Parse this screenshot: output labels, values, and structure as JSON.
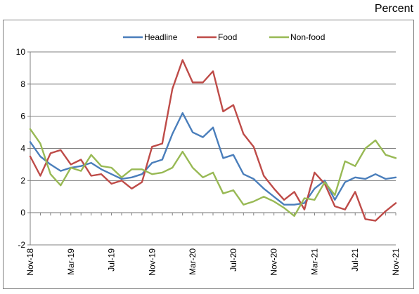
{
  "unit_label": "Percent",
  "chart_data": {
    "type": "line",
    "title": "",
    "xlabel": "",
    "ylabel": "",
    "ylim": [
      -2,
      10
    ],
    "yticks": [
      -2,
      0,
      2,
      4,
      6,
      8,
      10
    ],
    "grid": "horizontal",
    "legend": "top-center",
    "categories": [
      "Nov-18",
      "Dec-18",
      "Jan-19",
      "Feb-19",
      "Mar-19",
      "Apr-19",
      "May-19",
      "Jun-19",
      "Jul-19",
      "Aug-19",
      "Sep-19",
      "Oct-19",
      "Nov-19",
      "Dec-19",
      "Jan-20",
      "Feb-20",
      "Mar-20",
      "Apr-20",
      "May-20",
      "Jun-20",
      "Jul-20",
      "Aug-20",
      "Sep-20",
      "Oct-20",
      "Nov-20",
      "Dec-20",
      "Jan-21",
      "Feb-21",
      "Mar-21",
      "Apr-21",
      "May-21",
      "Jun-21",
      "Jul-21",
      "Aug-21",
      "Sep-21",
      "Oct-21",
      "Nov-21"
    ],
    "xtick_labels": [
      "Nov-18",
      "Mar-19",
      "Jul-19",
      "Nov-19",
      "Mar-20",
      "Jul-20",
      "Nov-20",
      "Mar-21",
      "Jul-21",
      "Nov-21"
    ],
    "series": [
      {
        "name": "Headline",
        "color": "#4a7ebb",
        "values": [
          4.4,
          3.5,
          3.0,
          2.6,
          2.8,
          2.9,
          3.1,
          2.7,
          2.4,
          2.1,
          2.2,
          2.4,
          3.1,
          3.3,
          4.9,
          6.2,
          5.0,
          4.7,
          5.3,
          3.4,
          3.6,
          2.4,
          2.1,
          1.5,
          1.0,
          0.5,
          0.5,
          0.6,
          1.5,
          2.0,
          0.8,
          1.9,
          2.2,
          2.1,
          2.4,
          2.1,
          2.2
        ]
      },
      {
        "name": "Food",
        "color": "#be4b48",
        "values": [
          3.5,
          2.3,
          3.7,
          3.9,
          3.0,
          3.3,
          2.3,
          2.4,
          1.8,
          2.0,
          1.5,
          1.9,
          4.1,
          4.3,
          7.7,
          9.5,
          8.1,
          8.1,
          8.8,
          6.3,
          6.7,
          4.9,
          4.1,
          2.3,
          1.5,
          0.8,
          1.3,
          0.2,
          2.5,
          1.8,
          0.4,
          0.2,
          1.3,
          -0.4,
          -0.5,
          0.1,
          0.6
        ]
      },
      {
        "name": "Non-food",
        "color": "#98b954",
        "values": [
          5.2,
          4.3,
          2.4,
          1.7,
          2.8,
          2.6,
          3.6,
          2.9,
          2.8,
          2.2,
          2.7,
          2.7,
          2.4,
          2.5,
          2.8,
          3.8,
          2.8,
          2.2,
          2.5,
          1.2,
          1.4,
          0.5,
          0.7,
          1.0,
          0.7,
          0.3,
          -0.2,
          0.9,
          0.8,
          1.9,
          1.1,
          3.2,
          2.9,
          4.0,
          4.5,
          3.6,
          3.4
        ]
      }
    ]
  }
}
